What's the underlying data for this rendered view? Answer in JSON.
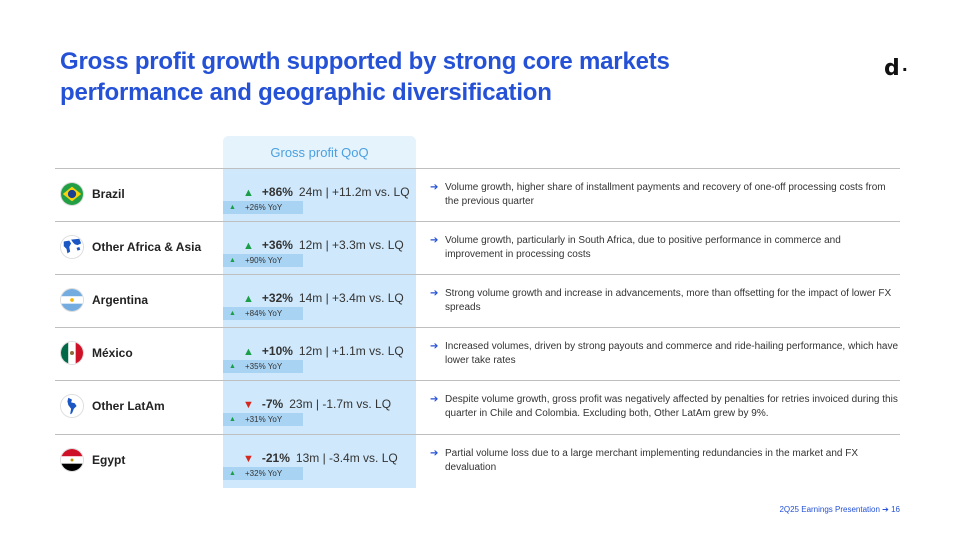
{
  "title": "Gross profit growth supported by strong core markets performance and geographic diversification",
  "logo": {
    "letter": "d",
    "dot": "·"
  },
  "column_header": "Gross profit QoQ",
  "rows": [
    {
      "country": "Brazil",
      "flag": "brazil-flag-icon",
      "trend": "up",
      "pct": "+86%",
      "detail": "24m | +11.2m vs. LQ",
      "yoy": "+26% YoY",
      "desc": "Volume growth, higher share of installment payments and recovery of one-off processing costs from the previous quarter"
    },
    {
      "country": "Other Africa & Asia",
      "flag": "africa-asia-map-icon",
      "trend": "up",
      "pct": "+36%",
      "detail": "12m | +3.3m vs. LQ",
      "yoy": "+90% YoY",
      "desc": "Volume growth, particularly in South Africa, due to positive performance in commerce and improvement in processing costs"
    },
    {
      "country": "Argentina",
      "flag": "argentina-flag-icon",
      "trend": "up",
      "pct": "+32%",
      "detail": "14m | +3.4m vs. LQ",
      "yoy": "+84% YoY",
      "desc": "Strong volume growth and increase in advancements, more than offsetting for the impact of lower FX spreads"
    },
    {
      "country": "México",
      "flag": "mexico-flag-icon",
      "trend": "up",
      "pct": "+10%",
      "detail": "12m | +1.1m vs. LQ",
      "yoy": "+35% YoY",
      "desc": "Increased volumes, driven by strong payouts and commerce and ride-hailing performance, which have lower take rates"
    },
    {
      "country": "Other LatAm",
      "flag": "latam-map-icon",
      "trend": "down",
      "pct": "-7%",
      "detail": "23m | -1.7m vs. LQ",
      "yoy": "+31% YoY",
      "desc": "Despite volume growth, gross profit was negatively affected by penalties for retries invoiced during this quarter in Chile and Colombia. Excluding both, Other LatAm grew by 9%."
    },
    {
      "country": "Egypt",
      "flag": "egypt-flag-icon",
      "trend": "down",
      "pct": "-21%",
      "detail": "13m | -3.4m vs. LQ",
      "yoy": "+32% YoY",
      "desc": "Partial volume loss due to a large merchant implementing redundancies in the market and FX devaluation"
    }
  ],
  "footer": "2Q25 Earnings Presentation ➔ 16"
}
